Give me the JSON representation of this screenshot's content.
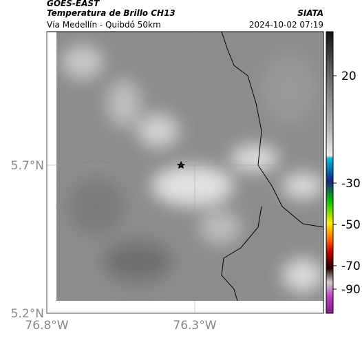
{
  "header": {
    "satellite": "GOES-EAST",
    "product": "Temperatura de Brillo CH13",
    "region": "Vía Medellín - Quibdó 50km",
    "source": "SIATA",
    "datetime": "2024-10-02 07:19"
  },
  "map": {
    "xlim": [
      -76.8,
      -75.865
    ],
    "ylim": [
      5.2,
      6.151
    ],
    "xticks": [
      {
        "value": -76.8,
        "label": "76.8°W"
      },
      {
        "value": -76.3,
        "label": "76.3°W"
      }
    ],
    "yticks": [
      {
        "value": 5.7,
        "label": "5.7°N"
      },
      {
        "value": 5.2,
        "label": "5.2°N"
      }
    ]
  },
  "colorbar": {
    "ticks": [
      20,
      -30,
      -50,
      -70,
      -90
    ]
  }
}
